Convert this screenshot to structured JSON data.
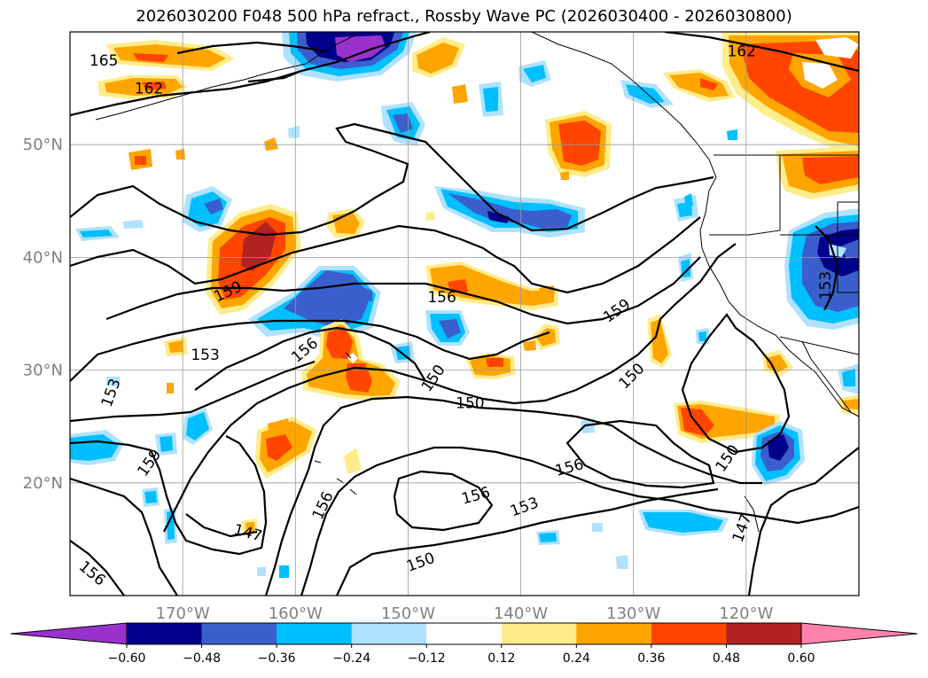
{
  "title": "2026030200 F048 500 hPa refract., Rossby Wave PC (2026030400 - 2026030800)",
  "map": {
    "lon_range": [
      -180,
      -110
    ],
    "lat_range": [
      10,
      60
    ],
    "lon_ticks": [
      {
        "lon": -170,
        "label": "170°W"
      },
      {
        "lon": -160,
        "label": "160°W"
      },
      {
        "lon": -150,
        "label": "150°W"
      },
      {
        "lon": -140,
        "label": "140°W"
      },
      {
        "lon": -130,
        "label": "130°W"
      },
      {
        "lon": -120,
        "label": "120°W"
      }
    ],
    "lat_ticks": [
      {
        "lat": 20,
        "label": "20°N"
      },
      {
        "lat": 30,
        "label": "30°N"
      },
      {
        "lat": 40,
        "label": "40°N"
      },
      {
        "lat": 50,
        "label": "50°N"
      }
    ],
    "grid": true,
    "contour_labels": [
      {
        "text": "165",
        "lon": -177.0,
        "lat": 57.5,
        "rot": 0
      },
      {
        "text": "162",
        "lon": -173.0,
        "lat": 55.0,
        "rot": 0
      },
      {
        "text": "162",
        "lon": -120.4,
        "lat": 58.3,
        "rot": 0
      },
      {
        "text": "159",
        "lon": -166.0,
        "lat": 37.0,
        "rot": -25
      },
      {
        "text": "156",
        "lon": -147.0,
        "lat": 36.5,
        "rot": 0
      },
      {
        "text": "159",
        "lon": -131.5,
        "lat": 35.3,
        "rot": -35
      },
      {
        "text": "156",
        "lon": -159.2,
        "lat": 31.8,
        "rot": -40
      },
      {
        "text": "153",
        "lon": -168.0,
        "lat": 31.4,
        "rot": 0
      },
      {
        "text": "150",
        "lon": -147.8,
        "lat": 29.3,
        "rot": -55
      },
      {
        "text": "153",
        "lon": -176.4,
        "lat": 28.0,
        "rot": -70
      },
      {
        "text": "150",
        "lon": -130.2,
        "lat": 29.5,
        "rot": -45
      },
      {
        "text": "150",
        "lon": -144.5,
        "lat": 27.1,
        "rot": 0
      },
      {
        "text": "159",
        "lon": -173.0,
        "lat": 21.8,
        "rot": -55
      },
      {
        "text": "156",
        "lon": -135.7,
        "lat": 21.4,
        "rot": -15
      },
      {
        "text": "150",
        "lon": -121.7,
        "lat": 22.2,
        "rot": -55
      },
      {
        "text": "156",
        "lon": -144.0,
        "lat": 18.9,
        "rot": -15
      },
      {
        "text": "153",
        "lon": -139.7,
        "lat": 17.9,
        "rot": -20
      },
      {
        "text": "147",
        "lon": -164.2,
        "lat": 15.6,
        "rot": 15
      },
      {
        "text": "156",
        "lon": -157.6,
        "lat": 18.0,
        "rot": -65
      },
      {
        "text": "150",
        "lon": -148.9,
        "lat": 13.0,
        "rot": -20
      },
      {
        "text": "147",
        "lon": -120.4,
        "lat": 16.0,
        "rot": -70
      },
      {
        "text": "156",
        "lon": -178.0,
        "lat": 12.0,
        "rot": 40
      },
      {
        "text": "153",
        "lon": -113.0,
        "lat": 37.5,
        "rot": -90
      }
    ]
  },
  "colorbar": {
    "labels": [
      "−0.60",
      "−0.48",
      "−0.36",
      "−0.24",
      "−0.12",
      "0.12",
      "0.24",
      "0.36",
      "0.48",
      "0.60"
    ],
    "colors": [
      "#9932cc",
      "#00008b",
      "#3a5fcd",
      "#00bfff",
      "#b0e2ff",
      "#ffffff",
      "#ffec8b",
      "#ffa500",
      "#ff4500",
      "#b22222",
      "#ff82ab"
    ]
  }
}
